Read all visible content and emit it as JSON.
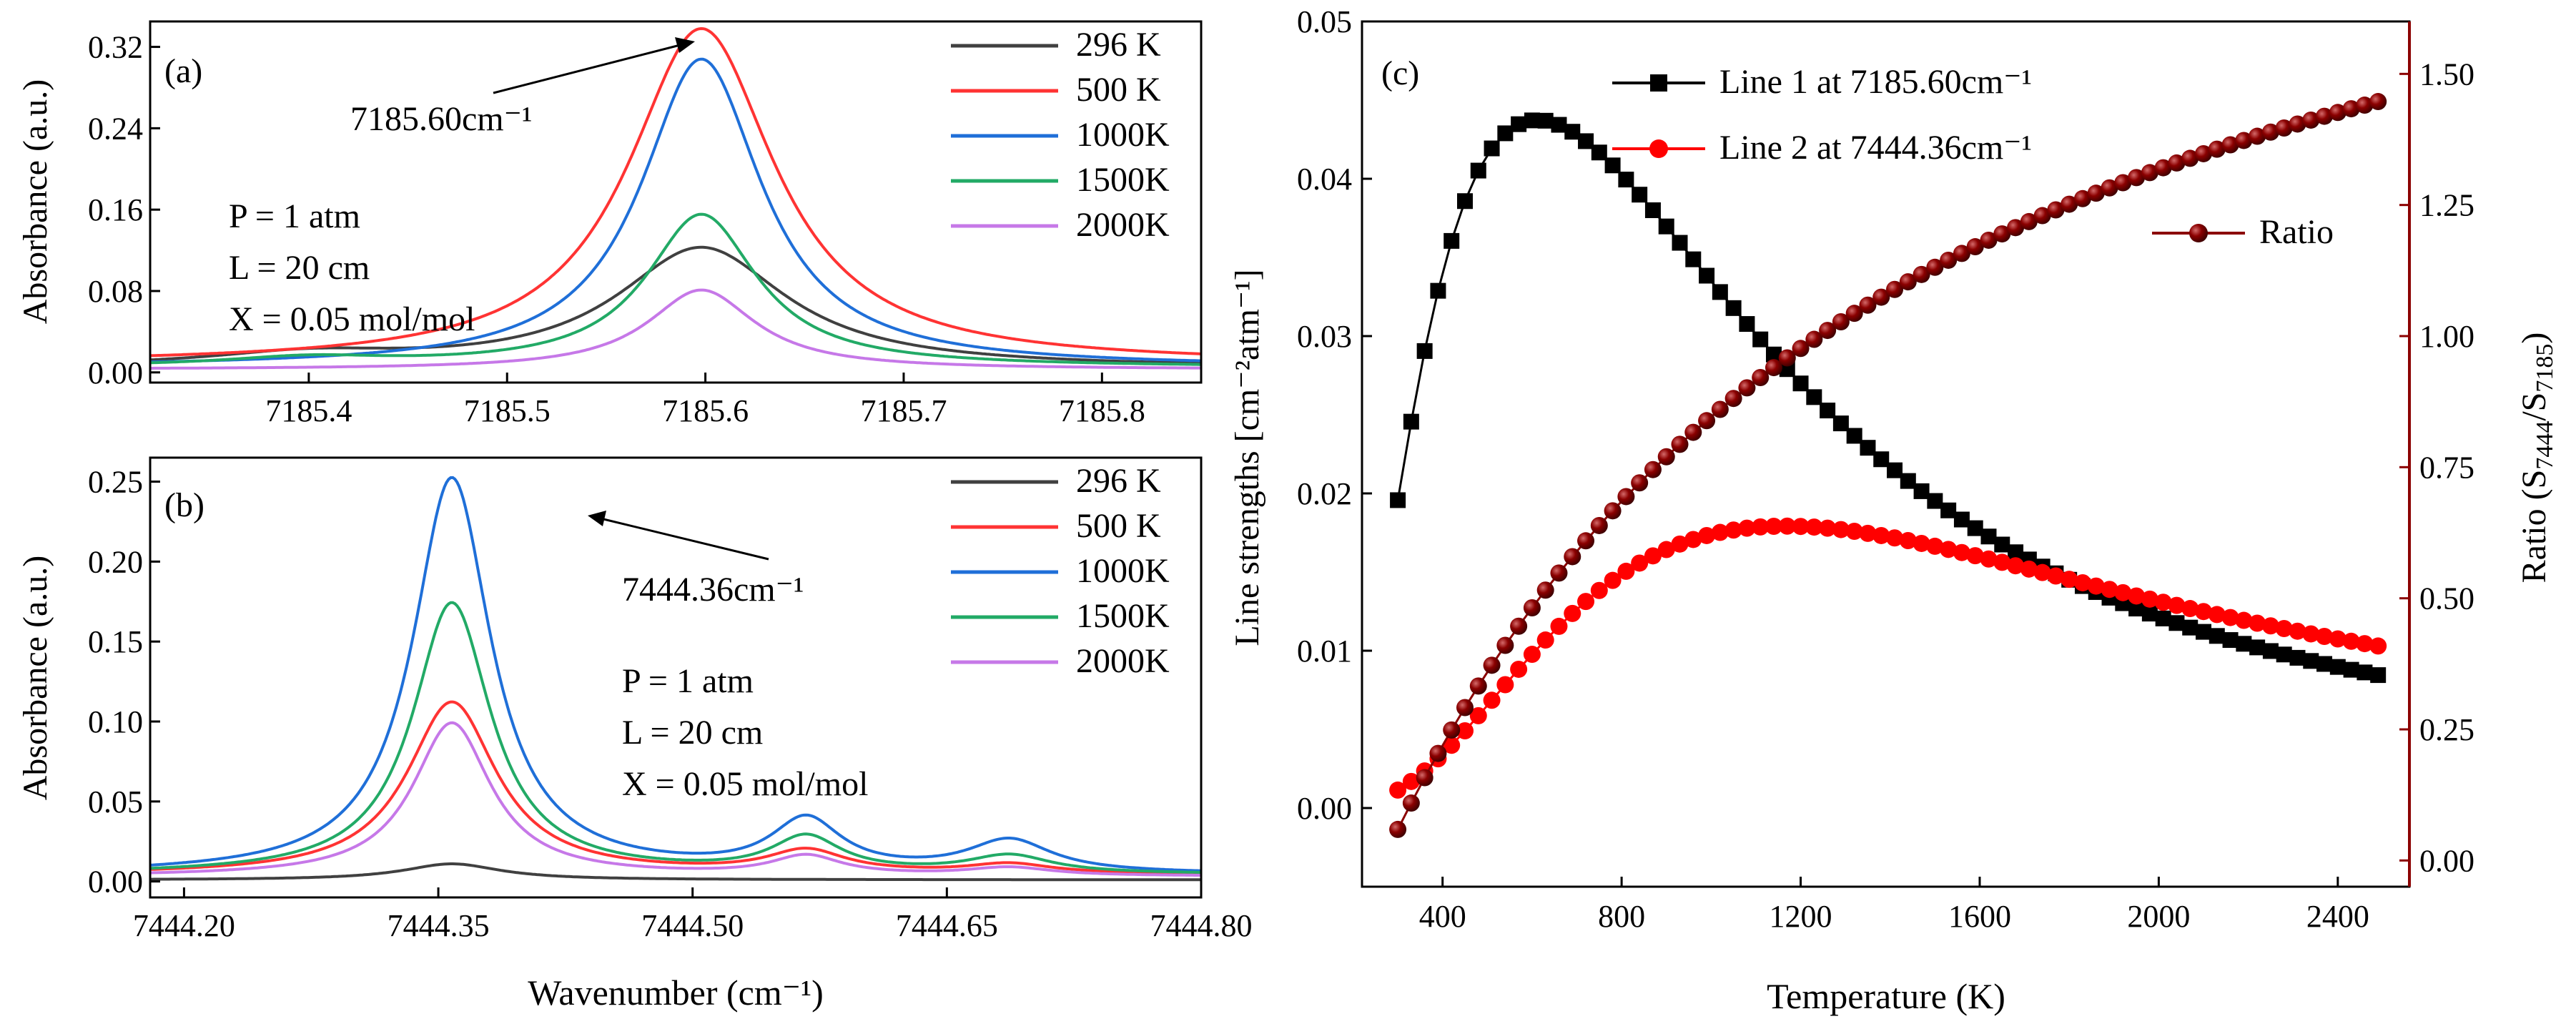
{
  "chart_data": [
    {
      "id": "a",
      "type": "line",
      "panel_label": "(a)",
      "xlabel": "",
      "ylabel": "Absorbance (a.u.)",
      "xlim": [
        7185.32,
        7185.85
      ],
      "ylim": [
        -0.01,
        0.345
      ],
      "xticks": [
        "7185.4",
        "7185.5",
        "7185.6",
        "7185.7",
        "7185.8"
      ],
      "yticks": [
        "0.00",
        "0.08",
        "0.16",
        "0.24",
        "0.32"
      ],
      "annotation": "7185.60cm⁻¹",
      "conditions": [
        "P = 1 atm",
        "L = 20 cm",
        "X = 0.05 mol/mol"
      ],
      "legend_position": "top-right",
      "series": [
        {
          "name": "296  K",
          "color": "#404040",
          "peaks": [
            {
              "center": 7185.598,
              "height": 0.118,
              "width": 0.052
            },
            {
              "center": 7185.4,
              "height": 0.012,
              "width": 0.06
            }
          ],
          "baseline": 0.004
        },
        {
          "name": "500  K",
          "color": "#ff3333",
          "peaks": [
            {
              "center": 7185.598,
              "height": 0.33,
              "width": 0.045
            }
          ],
          "baseline": 0.008
        },
        {
          "name": "1000K",
          "color": "#1f6fd8",
          "peaks": [
            {
              "center": 7185.598,
              "height": 0.303,
              "width": 0.037
            }
          ],
          "baseline": 0.005
        },
        {
          "name": "1500K",
          "color": "#22aa66",
          "peaks": [
            {
              "center": 7185.598,
              "height": 0.15,
              "width": 0.034
            },
            {
              "center": 7185.4,
              "height": 0.008,
              "width": 0.05
            }
          ],
          "baseline": 0.005
        },
        {
          "name": "2000K",
          "color": "#c678e8",
          "peaks": [
            {
              "center": 7185.598,
              "height": 0.078,
              "width": 0.033
            }
          ],
          "baseline": 0.003
        }
      ]
    },
    {
      "id": "b",
      "type": "line",
      "panel_label": "(b)",
      "xlabel": "Wavenumber (cm⁻¹)",
      "ylabel": "Absorbance (a.u.)",
      "xlim": [
        7444.18,
        7444.8
      ],
      "ylim": [
        -0.01,
        0.265
      ],
      "xticks": [
        "7444.20",
        "7444.35",
        "7444.50",
        "7444.65",
        "7444.80"
      ],
      "yticks": [
        "0.00",
        "0.05",
        "0.10",
        "0.15",
        "0.20",
        "0.25"
      ],
      "annotation": "7444.36cm⁻¹",
      "conditions": [
        "P = 1 atm",
        "L = 20 cm",
        "X = 0.05 mol/mol"
      ],
      "legend_position": "top-right",
      "series": [
        {
          "name": "296  K",
          "color": "#404040",
          "peaks": [
            {
              "center": 7444.358,
              "height": 0.01,
              "width": 0.035
            }
          ],
          "baseline": 0.001
        },
        {
          "name": "500  K",
          "color": "#ff3333",
          "peaks": [
            {
              "center": 7444.358,
              "height": 0.108,
              "width": 0.032
            },
            {
              "center": 7444.567,
              "height": 0.014,
              "width": 0.028
            },
            {
              "center": 7444.687,
              "height": 0.006,
              "width": 0.03
            }
          ],
          "baseline": 0.004
        },
        {
          "name": "1000K",
          "color": "#1f6fd8",
          "peaks": [
            {
              "center": 7444.358,
              "height": 0.248,
              "width": 0.028
            },
            {
              "center": 7444.567,
              "height": 0.032,
              "width": 0.025
            },
            {
              "center": 7444.687,
              "height": 0.02,
              "width": 0.03
            }
          ],
          "baseline": 0.004
        },
        {
          "name": "1500K",
          "color": "#22aa66",
          "peaks": [
            {
              "center": 7444.358,
              "height": 0.17,
              "width": 0.028
            },
            {
              "center": 7444.567,
              "height": 0.022,
              "width": 0.025
            },
            {
              "center": 7444.687,
              "height": 0.011,
              "width": 0.03
            }
          ],
          "baseline": 0.004
        },
        {
          "name": "2000K",
          "color": "#c678e8",
          "peaks": [
            {
              "center": 7444.358,
              "height": 0.096,
              "width": 0.028
            },
            {
              "center": 7444.567,
              "height": 0.012,
              "width": 0.025
            },
            {
              "center": 7444.687,
              "height": 0.005,
              "width": 0.03
            }
          ],
          "baseline": 0.003
        }
      ]
    },
    {
      "id": "c",
      "type": "line",
      "panel_label": "(c)",
      "xlabel": "Temperature (K)",
      "ylabel": "Line strengths [cm⁻²atm⁻¹]",
      "ylabel_right": "Ratio (S7444/S7185)",
      "xlim": [
        220,
        2560
      ],
      "ylim": [
        -0.005,
        0.05
      ],
      "ylim_right": [
        -0.05,
        1.6
      ],
      "xticks": [
        "400",
        "800",
        "1200",
        "1600",
        "2000",
        "2400"
      ],
      "yticks": [
        "0.00",
        "0.01",
        "0.02",
        "0.03",
        "0.04",
        "0.05"
      ],
      "yticks_right": [
        "0.00",
        "0.25",
        "0.50",
        "0.75",
        "1.00",
        "1.25",
        "1.50"
      ],
      "right_axis_color": "#8b0000",
      "T": [
        300,
        330,
        360,
        390,
        420,
        450,
        480,
        510,
        540,
        570,
        600,
        630,
        660,
        690,
        720,
        750,
        780,
        810,
        840,
        870,
        900,
        930,
        960,
        990,
        1020,
        1050,
        1080,
        1110,
        1140,
        1170,
        1200,
        1230,
        1260,
        1290,
        1320,
        1350,
        1380,
        1410,
        1440,
        1470,
        1500,
        1530,
        1560,
        1590,
        1620,
        1650,
        1680,
        1710,
        1740,
        1770,
        1800,
        1830,
        1860,
        1890,
        1920,
        1950,
        1980,
        2010,
        2040,
        2070,
        2100,
        2130,
        2160,
        2190,
        2220,
        2250,
        2280,
        2310,
        2340,
        2370,
        2400,
        2430,
        2460,
        2490
      ],
      "series": [
        {
          "name": "Line 1 at 7185.60cm⁻¹",
          "color": "#000000",
          "marker": "square",
          "axis": "left",
          "values": [
            0.01957,
            0.02456,
            0.02905,
            0.03288,
            0.03605,
            0.03858,
            0.04052,
            0.04193,
            0.04289,
            0.04347,
            0.04371,
            0.04369,
            0.04343,
            0.04299,
            0.04239,
            0.04167,
            0.04085,
            0.03995,
            0.03899,
            0.038,
            0.03697,
            0.03593,
            0.03488,
            0.03384,
            0.0328,
            0.03178,
            0.03077,
            0.02979,
            0.02883,
            0.0279,
            0.02699,
            0.02612,
            0.02527,
            0.02445,
            0.02366,
            0.0229,
            0.02217,
            0.02147,
            0.02079,
            0.02014,
            0.01952,
            0.01892,
            0.01834,
            0.01779,
            0.01726,
            0.01675,
            0.01626,
            0.0158,
            0.01535,
            0.01492,
            0.01451,
            0.01411,
            0.01373,
            0.01337,
            0.01302,
            0.01268,
            0.01236,
            0.01205,
            0.01176,
            0.01147,
            0.0112,
            0.01094,
            0.01068,
            0.01044,
            0.01021,
            0.00998,
            0.00976,
            0.00955,
            0.00935,
            0.00916,
            0.00897,
            0.00879,
            0.00862,
            0.00845
          ]
        },
        {
          "name": "Line 2 at 7444.36cm⁻¹",
          "color": "#ff0000",
          "marker": "circle",
          "axis": "left",
          "values": [
            0.00114,
            0.00169,
            0.00236,
            0.00313,
            0.00399,
            0.00491,
            0.00587,
            0.00685,
            0.00784,
            0.00882,
            0.00977,
            0.01068,
            0.01155,
            0.01237,
            0.01313,
            0.01383,
            0.01447,
            0.01505,
            0.01557,
            0.01603,
            0.01643,
            0.01678,
            0.01707,
            0.01732,
            0.01752,
            0.01767,
            0.01779,
            0.01787,
            0.01791,
            0.01792,
            0.0179,
            0.01786,
            0.01779,
            0.0177,
            0.01759,
            0.01746,
            0.01732,
            0.01717,
            0.017,
            0.01682,
            0.01664,
            0.01644,
            0.01624,
            0.01604,
            0.01583,
            0.01562,
            0.0154,
            0.01519,
            0.01497,
            0.01475,
            0.01454,
            0.01432,
            0.01411,
            0.0139,
            0.01369,
            0.01348,
            0.01328,
            0.01308,
            0.01288,
            0.01268,
            0.01249,
            0.0123,
            0.01211,
            0.01193,
            0.01175,
            0.01158,
            0.01141,
            0.01124,
            0.01107,
            0.01091,
            0.01075,
            0.0106,
            0.01045,
            0.0103
          ]
        },
        {
          "name": "Ratio",
          "color": "#8b0000",
          "marker": "sphere",
          "axis": "right",
          "values": [
            0.05846,
            0.09066,
            0.12118,
            0.15012,
            0.17758,
            0.20366,
            0.22845,
            0.25203,
            0.27448,
            0.29587,
            0.31626,
            0.33573,
            0.35432,
            0.37208,
            0.38907,
            0.40533,
            0.4209,
            0.43582,
            0.45013,
            0.46386,
            0.47704,
            0.4897,
            0.50187,
            0.51358,
            0.52484,
            0.53569,
            0.54614,
            0.55621,
            0.56592,
            0.57529,
            0.58433,
            0.59306,
            0.60149,
            0.60964,
            0.61752,
            0.62514,
            0.63252,
            0.63966,
            0.64657,
            0.65326,
            0.65975,
            0.66604,
            0.67214,
            0.67805,
            0.68379,
            0.68936,
            0.69477,
            0.70002,
            0.70512,
            0.71008,
            0.7149,
            0.71958,
            0.72414,
            0.72857,
            0.73289,
            0.73709,
            0.74118,
            0.74516,
            0.74904,
            0.75282,
            0.7565,
            0.7601,
            0.7636,
            0.76702,
            0.77036,
            0.77361,
            0.77679,
            0.7799,
            0.78293,
            0.78589,
            0.78879,
            0.79162,
            0.79439,
            0.79709
          ],
          "right_values": [
            0.0592,
            0.1095,
            0.1579,
            0.2042,
            0.2488,
            0.2916,
            0.3327,
            0.3723,
            0.4102,
            0.4467,
            0.4818,
            0.5156,
            0.5481,
            0.5794,
            0.6096,
            0.6387,
            0.6668,
            0.6939,
            0.7201,
            0.7454,
            0.7699,
            0.7936,
            0.8165,
            0.8387,
            0.8602,
            0.8811,
            0.9013,
            0.9209,
            0.9399,
            0.9584,
            0.9764,
            0.9938,
            1.0108,
            1.0273,
            1.0434,
            1.059,
            1.0742,
            1.089,
            1.1035,
            1.1175,
            1.1312,
            1.1446,
            1.1576,
            1.1704,
            1.1828,
            1.1949,
            1.2068,
            1.2183,
            1.2297,
            1.2407,
            1.2515,
            1.2621,
            1.2725,
            1.2826,
            1.2925,
            1.3022,
            1.3117,
            1.321,
            1.3301,
            1.339,
            1.3478,
            1.3564,
            1.3648,
            1.373,
            1.3811,
            1.389,
            1.3968,
            1.4044,
            1.4119,
            1.4192,
            1.4264,
            1.4335,
            1.4404,
            1.4472
          ]
        }
      ]
    }
  ]
}
